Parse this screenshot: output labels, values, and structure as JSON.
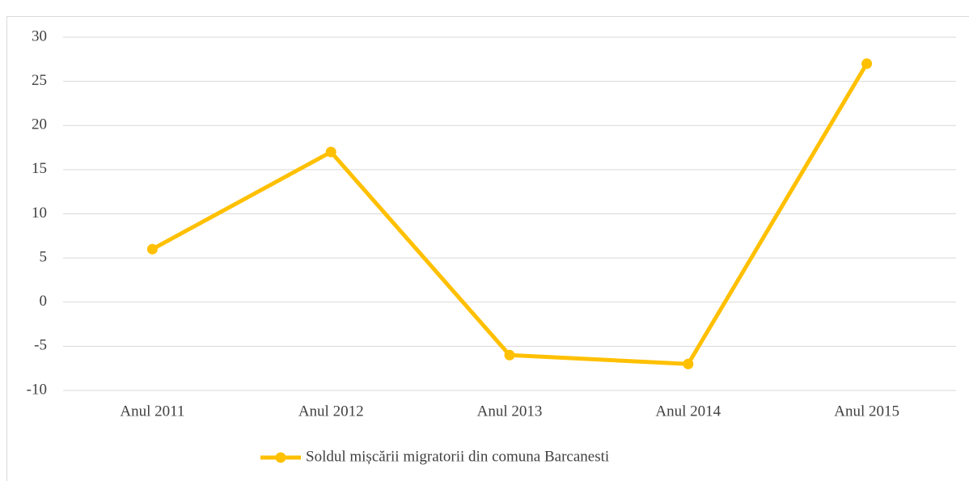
{
  "chart_data": {
    "type": "line",
    "categories": [
      "Anul 2011",
      "Anul 2012",
      "Anul 2013",
      "Anul 2014",
      "Anul 2015"
    ],
    "series": [
      {
        "name": "Soldul mișcării migratorii din comuna Barcanesti",
        "color": "#ffc000",
        "values": [
          6,
          17,
          -6,
          -7,
          27
        ]
      }
    ],
    "ylim": [
      -10,
      30
    ],
    "yticks": [
      -10,
      -5,
      0,
      5,
      10,
      15,
      20,
      25,
      30
    ],
    "grid": true,
    "legend": "bottom"
  }
}
